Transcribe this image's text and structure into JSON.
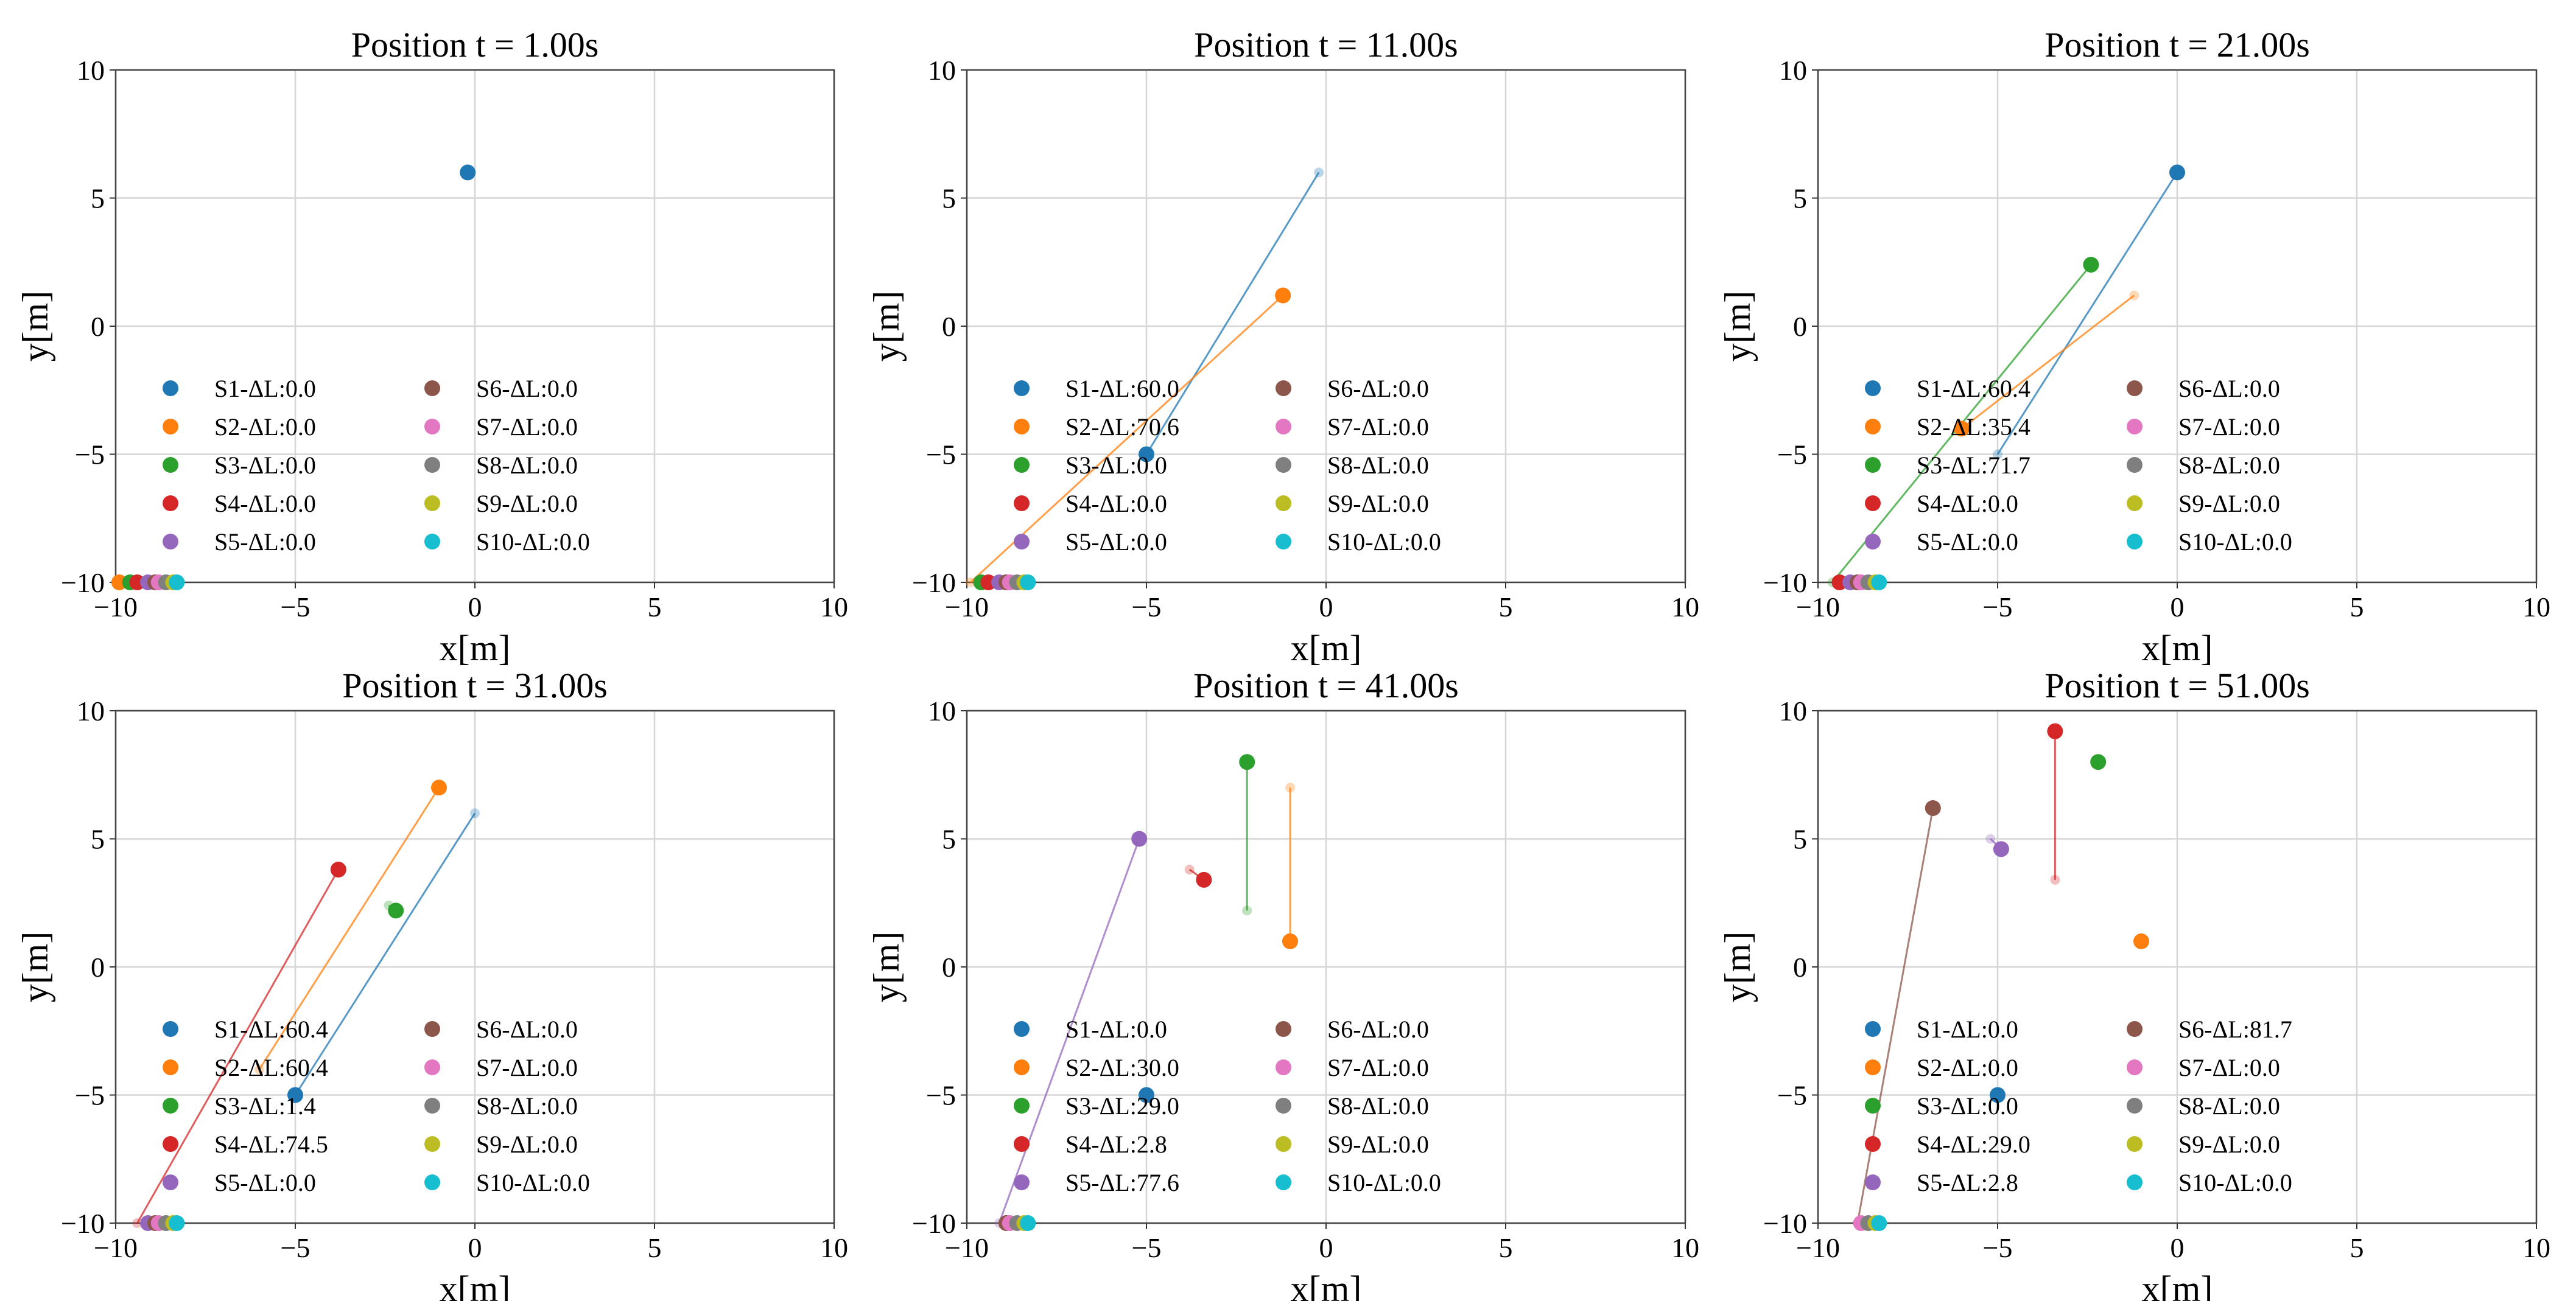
{
  "chart_data": [
    {
      "type": "scatter",
      "title": "Position t = 1.00s",
      "xlabel": "x[m]",
      "ylabel": "y[m]",
      "xlim": [
        -10,
        10
      ],
      "ylim": [
        -10,
        10
      ],
      "ticks": [
        "−10",
        "−5",
        "0",
        "5",
        "10"
      ],
      "legend": [
        "S1-ΔL:0.0",
        "S2-ΔL:0.0",
        "S3-ΔL:0.0",
        "S4-ΔL:0.0",
        "S5-ΔL:0.0",
        "S6-ΔL:0.0",
        "S7-ΔL:0.0",
        "S8-ΔL:0.0",
        "S9-ΔL:0.0",
        "S10-ΔL:0.0"
      ],
      "positions": [
        [
          -0.2,
          6.0
        ],
        [
          -9.9,
          -10
        ],
        [
          -9.6,
          -10
        ],
        [
          -9.4,
          -10
        ],
        [
          -9.1,
          -10
        ],
        [
          -8.9,
          -10
        ],
        [
          -8.8,
          -10
        ],
        [
          -8.6,
          -10
        ],
        [
          -8.4,
          -10
        ],
        [
          -8.3,
          -10
        ]
      ],
      "previous": [
        null,
        null,
        null,
        null,
        null,
        null,
        null,
        null,
        null,
        null
      ]
    },
    {
      "type": "scatter",
      "title": "Position t = 11.00s",
      "xlabel": "x[m]",
      "ylabel": "y[m]",
      "xlim": [
        -10,
        10
      ],
      "ylim": [
        -10,
        10
      ],
      "ticks": [
        "−10",
        "−5",
        "0",
        "5",
        "10"
      ],
      "legend": [
        "S1-ΔL:60.0",
        "S2-ΔL:70.6",
        "S3-ΔL:0.0",
        "S4-ΔL:0.0",
        "S5-ΔL:0.0",
        "S6-ΔL:0.0",
        "S7-ΔL:0.0",
        "S8-ΔL:0.0",
        "S9-ΔL:0.0",
        "S10-ΔL:0.0"
      ],
      "positions": [
        [
          -5.0,
          -5.0
        ],
        [
          -1.2,
          1.2
        ],
        [
          -9.6,
          -10
        ],
        [
          -9.4,
          -10
        ],
        [
          -9.1,
          -10
        ],
        [
          -8.9,
          -10
        ],
        [
          -8.8,
          -10
        ],
        [
          -8.6,
          -10
        ],
        [
          -8.4,
          -10
        ],
        [
          -8.3,
          -10
        ]
      ],
      "previous": [
        [
          -0.2,
          6.0
        ],
        [
          -9.9,
          -10
        ],
        null,
        null,
        null,
        null,
        null,
        null,
        null,
        null
      ]
    },
    {
      "type": "scatter",
      "title": "Position t = 21.00s",
      "xlabel": "x[m]",
      "ylabel": "y[m]",
      "xlim": [
        -10,
        10
      ],
      "ylim": [
        -10,
        10
      ],
      "ticks": [
        "−10",
        "−5",
        "0",
        "5",
        "10"
      ],
      "legend": [
        "S1-ΔL:60.4",
        "S2-ΔL:35.4",
        "S3-ΔL:71.7",
        "S4-ΔL:0.0",
        "S5-ΔL:0.0",
        "S6-ΔL:0.0",
        "S7-ΔL:0.0",
        "S8-ΔL:0.0",
        "S9-ΔL:0.0",
        "S10-ΔL:0.0"
      ],
      "positions": [
        [
          0.0,
          6.0
        ],
        [
          -6.0,
          -4.0
        ],
        [
          -2.4,
          2.4
        ],
        [
          -9.4,
          -10
        ],
        [
          -9.1,
          -10
        ],
        [
          -8.9,
          -10
        ],
        [
          -8.8,
          -10
        ],
        [
          -8.6,
          -10
        ],
        [
          -8.4,
          -10
        ],
        [
          -8.3,
          -10
        ]
      ],
      "previous": [
        [
          -5.0,
          -5.0
        ],
        [
          -1.2,
          1.2
        ],
        [
          -9.6,
          -10
        ],
        null,
        null,
        null,
        null,
        null,
        null,
        null
      ]
    },
    {
      "type": "scatter",
      "title": "Position t = 31.00s",
      "xlabel": "x[m]",
      "ylabel": "y[m]",
      "xlim": [
        -10,
        10
      ],
      "ylim": [
        -10,
        10
      ],
      "ticks": [
        "−10",
        "−5",
        "0",
        "5",
        "10"
      ],
      "legend": [
        "S1-ΔL:60.4",
        "S2-ΔL:60.4",
        "S3-ΔL:1.4",
        "S4-ΔL:74.5",
        "S5-ΔL:0.0",
        "S6-ΔL:0.0",
        "S7-ΔL:0.0",
        "S8-ΔL:0.0",
        "S9-ΔL:0.0",
        "S10-ΔL:0.0"
      ],
      "positions": [
        [
          -5.0,
          -5.0
        ],
        [
          -1.0,
          7.0
        ],
        [
          -2.2,
          2.2
        ],
        [
          -3.8,
          3.8
        ],
        [
          -9.1,
          -10
        ],
        [
          -8.9,
          -10
        ],
        [
          -8.8,
          -10
        ],
        [
          -8.6,
          -10
        ],
        [
          -8.4,
          -10
        ],
        [
          -8.3,
          -10
        ]
      ],
      "previous": [
        [
          0.0,
          6.0
        ],
        [
          -6.0,
          -4.0
        ],
        [
          -2.4,
          2.4
        ],
        [
          -9.4,
          -10
        ],
        null,
        null,
        null,
        null,
        null,
        null
      ]
    },
    {
      "type": "scatter",
      "title": "Position t = 41.00s",
      "xlabel": "x[m]",
      "ylabel": "y[m]",
      "xlim": [
        -10,
        10
      ],
      "ylim": [
        -10,
        10
      ],
      "ticks": [
        "−10",
        "−5",
        "0",
        "5",
        "10"
      ],
      "legend": [
        "S1-ΔL:0.0",
        "S2-ΔL:30.0",
        "S3-ΔL:29.0",
        "S4-ΔL:2.8",
        "S5-ΔL:77.6",
        "S6-ΔL:0.0",
        "S7-ΔL:0.0",
        "S8-ΔL:0.0",
        "S9-ΔL:0.0",
        "S10-ΔL:0.0"
      ],
      "positions": [
        [
          -5.0,
          -5.0
        ],
        [
          -1.0,
          1.0
        ],
        [
          -2.2,
          8.0
        ],
        [
          -3.4,
          3.4
        ],
        [
          -5.2,
          5.0
        ],
        [
          -8.9,
          -10
        ],
        [
          -8.8,
          -10
        ],
        [
          -8.6,
          -10
        ],
        [
          -8.4,
          -10
        ],
        [
          -8.3,
          -10
        ]
      ],
      "previous": [
        null,
        [
          -1.0,
          7.0
        ],
        [
          -2.2,
          2.2
        ],
        [
          -3.8,
          3.8
        ],
        [
          -9.1,
          -10
        ],
        null,
        null,
        null,
        null,
        null
      ]
    },
    {
      "type": "scatter",
      "title": "Position t = 51.00s",
      "xlabel": "x[m]",
      "ylabel": "y[m]",
      "xlim": [
        -10,
        10
      ],
      "ylim": [
        -10,
        10
      ],
      "ticks": [
        "−10",
        "−5",
        "0",
        "5",
        "10"
      ],
      "legend": [
        "S1-ΔL:0.0",
        "S2-ΔL:0.0",
        "S3-ΔL:0.0",
        "S4-ΔL:29.0",
        "S5-ΔL:2.8",
        "S6-ΔL:81.7",
        "S7-ΔL:0.0",
        "S8-ΔL:0.0",
        "S9-ΔL:0.0",
        "S10-ΔL:0.0"
      ],
      "positions": [
        [
          -5.0,
          -5.0
        ],
        [
          -1.0,
          1.0
        ],
        [
          -2.2,
          8.0
        ],
        [
          -3.4,
          9.2
        ],
        [
          -4.9,
          4.6
        ],
        [
          -6.8,
          6.2
        ],
        [
          -8.8,
          -10
        ],
        [
          -8.6,
          -10
        ],
        [
          -8.4,
          -10
        ],
        [
          -8.3,
          -10
        ]
      ],
      "previous": [
        null,
        null,
        null,
        [
          -3.4,
          3.4
        ],
        [
          -5.2,
          5.0
        ],
        [
          -8.9,
          -10
        ],
        null,
        null,
        null,
        null
      ]
    }
  ],
  "colors": [
    "#1f77b4",
    "#ff7f0e",
    "#2ca02c",
    "#d62728",
    "#9467bd",
    "#8c564b",
    "#e377c2",
    "#7f7f7f",
    "#bcbd22",
    "#17becf"
  ]
}
